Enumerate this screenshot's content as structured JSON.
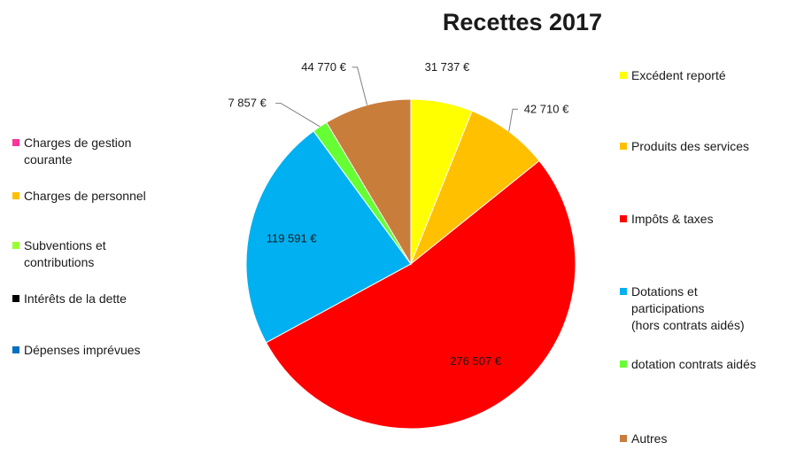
{
  "chart_data": {
    "type": "pie",
    "title": "Recettes 2017",
    "currency": "€",
    "slices": [
      {
        "label": "Excédent reporté",
        "value": 31737,
        "value_label": "31 737 €",
        "color": "#ffff00"
      },
      {
        "label": "Produits des services",
        "value": 42710,
        "value_label": "42 710 €",
        "color": "#ffc000"
      },
      {
        "label": "Impôts & taxes",
        "value": 276507,
        "value_label": "276 507 €",
        "color": "#ff0000"
      },
      {
        "label": "Dotations et\nparticipations\n(hors contrats aidés)",
        "value": 119591,
        "value_label": "119 591 €",
        "color": "#00b0f0"
      },
      {
        "label": "dotation contrats aidés",
        "value": 7857,
        "value_label": "7 857 €",
        "color": "#66ff33"
      },
      {
        "label": "Autres",
        "value": 44770,
        "value_label": "44 770 €",
        "color": "#c97d3b"
      }
    ],
    "secondary_legend": [
      {
        "label": "Charges de gestion\ncourante",
        "color": "#ff3399"
      },
      {
        "label": "Charges de personnel",
        "color": "#ffc000"
      },
      {
        "label": "Subventions et\ncontributions",
        "color": "#99ff33"
      },
      {
        "label": "Intérêts de la dette",
        "color": "#000000"
      },
      {
        "label": "Dépenses imprévues",
        "color": "#0070c0"
      }
    ]
  }
}
